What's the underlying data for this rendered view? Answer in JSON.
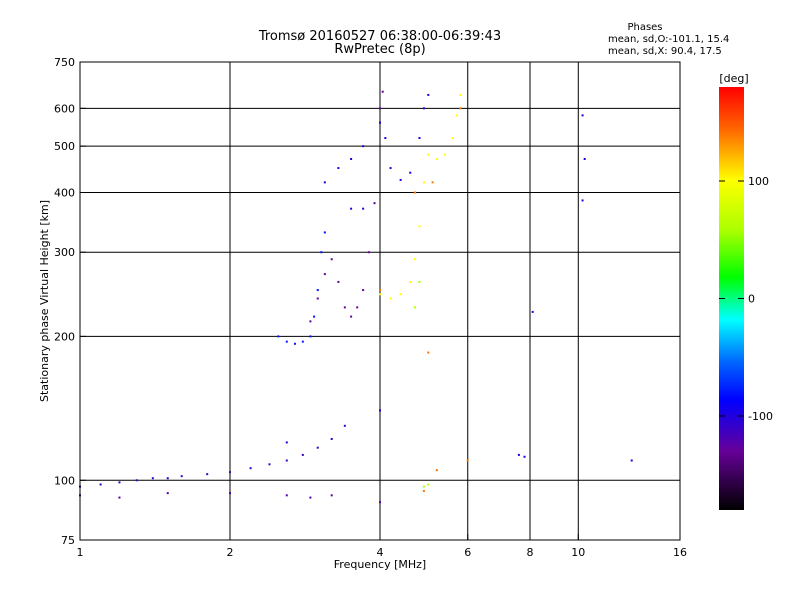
{
  "chart_data": {
    "type": "scatter",
    "title": "Tromsø 20160527 06:38:00-06:39:43",
    "subtitle": "RwPretec (8p)",
    "xlabel": "Frequency [MHz]",
    "ylabel": "Stationary phase Virtual Height [km]",
    "xscale": "log",
    "yscale": "log",
    "xlim": [
      1,
      16
    ],
    "ylim": [
      75,
      750
    ],
    "x_ticks": [
      1,
      2,
      4,
      6,
      8,
      10,
      16
    ],
    "y_ticks": [
      75,
      100,
      200,
      300,
      400,
      500,
      600,
      750
    ],
    "x_grid": [
      2,
      4,
      6,
      8,
      10
    ],
    "y_grid": [
      100,
      200,
      300,
      400,
      500,
      600
    ],
    "grid": true,
    "legend_position": "top-right",
    "phase_stats": {
      "heading": "Phases",
      "o_line": "mean, sd,O:-101.1, 15.4",
      "x_line": "mean, sd,X:  90.4, 17.5"
    },
    "colorbar": {
      "label": "[deg]",
      "ticks": [
        "100",
        "0",
        "-100"
      ],
      "tick_values": [
        100,
        0,
        -100
      ],
      "range": [
        -180,
        180
      ]
    },
    "traces": [
      {
        "name": "",
        "phase": -110,
        "points": [
          [
            1.0,
            97
          ],
          [
            1.1,
            98
          ],
          [
            1.2,
            99
          ],
          [
            1.3,
            100
          ],
          [
            1.4,
            101
          ],
          [
            1.5,
            101
          ],
          [
            1.6,
            102
          ],
          [
            1.8,
            103
          ],
          [
            2.0,
            104
          ],
          [
            2.2,
            106
          ],
          [
            2.4,
            108
          ],
          [
            2.6,
            110
          ],
          [
            2.8,
            113
          ],
          [
            3.0,
            117
          ],
          [
            3.2,
            122
          ],
          [
            3.4,
            130
          ]
        ]
      },
      {
        "name": "",
        "phase": -80,
        "points": [
          [
            2.5,
            200
          ],
          [
            2.6,
            195
          ],
          [
            2.7,
            193
          ],
          [
            2.8,
            195
          ],
          [
            2.9,
            200
          ],
          [
            2.95,
            220
          ],
          [
            3.0,
            250
          ],
          [
            3.05,
            300
          ],
          [
            3.1,
            330
          ]
        ]
      },
      {
        "name": "",
        "phase": -130,
        "points": [
          [
            2.9,
            215
          ],
          [
            3.0,
            240
          ],
          [
            3.1,
            270
          ],
          [
            3.2,
            290
          ],
          [
            3.3,
            260
          ],
          [
            3.4,
            230
          ],
          [
            3.5,
            220
          ],
          [
            3.6,
            230
          ],
          [
            3.7,
            250
          ],
          [
            3.8,
            300
          ],
          [
            3.9,
            380
          ],
          [
            4.0,
            600
          ],
          [
            4.05,
            650
          ]
        ]
      },
      {
        "name": "",
        "phase": -100,
        "points": [
          [
            3.3,
            450
          ],
          [
            3.5,
            470
          ],
          [
            3.7,
            500
          ],
          [
            4.0,
            560
          ],
          [
            4.1,
            520
          ],
          [
            4.2,
            450
          ],
          [
            4.4,
            425
          ],
          [
            4.6,
            440
          ],
          [
            4.8,
            520
          ],
          [
            4.9,
            600
          ],
          [
            5.0,
            640
          ]
        ]
      },
      {
        "name": "",
        "phase": 100,
        "points": [
          [
            4.0,
            245
          ],
          [
            4.2,
            240
          ],
          [
            4.4,
            245
          ],
          [
            4.6,
            260
          ],
          [
            4.7,
            290
          ],
          [
            4.8,
            340
          ],
          [
            4.9,
            420
          ],
          [
            5.0,
            480
          ],
          [
            5.2,
            470
          ],
          [
            5.4,
            480
          ],
          [
            5.6,
            520
          ],
          [
            5.7,
            580
          ],
          [
            5.8,
            640
          ]
        ]
      },
      {
        "name": "",
        "phase": -120,
        "points": [
          [
            1.0,
            93
          ],
          [
            1.2,
            92
          ],
          [
            1.5,
            94
          ],
          [
            2.0,
            94
          ],
          [
            2.6,
            93
          ],
          [
            2.9,
            92
          ],
          [
            3.2,
            93
          ],
          [
            4.0,
            90
          ]
        ]
      },
      {
        "name": "",
        "phase": 140,
        "points": [
          [
            4.0,
            250
          ],
          [
            4.7,
            400
          ],
          [
            5.1,
            420
          ],
          [
            5.8,
            600
          ],
          [
            6.0,
            110
          ],
          [
            5.0,
            185
          ],
          [
            5.2,
            105
          ],
          [
            4.9,
            95
          ]
        ]
      },
      {
        "name": "",
        "phase": -100,
        "points": [
          [
            7.6,
            113
          ],
          [
            7.8,
            112
          ],
          [
            8.1,
            225
          ],
          [
            10.2,
            580
          ],
          [
            10.3,
            470
          ],
          [
            10.2,
            385
          ],
          [
            12.8,
            110
          ],
          [
            2.6,
            120
          ],
          [
            4.0,
            140
          ],
          [
            3.1,
            420
          ],
          [
            3.5,
            370
          ],
          [
            3.7,
            370
          ]
        ]
      },
      {
        "name": "",
        "phase": 60,
        "points": [
          [
            4.9,
            97
          ],
          [
            5.0,
            98
          ],
          [
            4.8,
            260
          ],
          [
            4.7,
            230
          ]
        ]
      }
    ]
  }
}
